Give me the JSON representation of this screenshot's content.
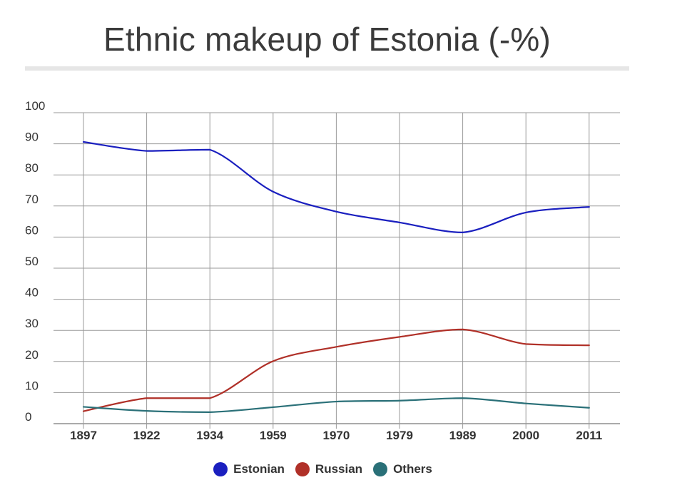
{
  "chart_data": {
    "type": "line",
    "title": "Ethnic makeup of Estonia (-%)",
    "categories": [
      "1897",
      "1922",
      "1934",
      "1959",
      "1970",
      "1979",
      "1989",
      "2000",
      "2011"
    ],
    "yticks": [
      "0",
      "10",
      "20",
      "30",
      "40",
      "50",
      "60",
      "70",
      "80",
      "90",
      "100"
    ],
    "ylim": [
      0,
      100
    ],
    "grid": true,
    "legend_position": "bottom",
    "series": [
      {
        "name": "Estonian",
        "color": "#1a1fbf",
        "values": [
          90.6,
          87.7,
          88.1,
          74.6,
          68.2,
          64.7,
          61.5,
          67.9,
          69.7
        ]
      },
      {
        "name": "Russian",
        "color": "#b03028",
        "values": [
          4.0,
          8.2,
          8.2,
          20.1,
          24.7,
          27.9,
          30.3,
          25.6,
          25.2
        ]
      },
      {
        "name": "Others",
        "color": "#2a7078",
        "values": [
          5.4,
          4.1,
          3.7,
          5.3,
          7.1,
          7.4,
          8.2,
          6.5,
          5.1
        ]
      }
    ]
  }
}
